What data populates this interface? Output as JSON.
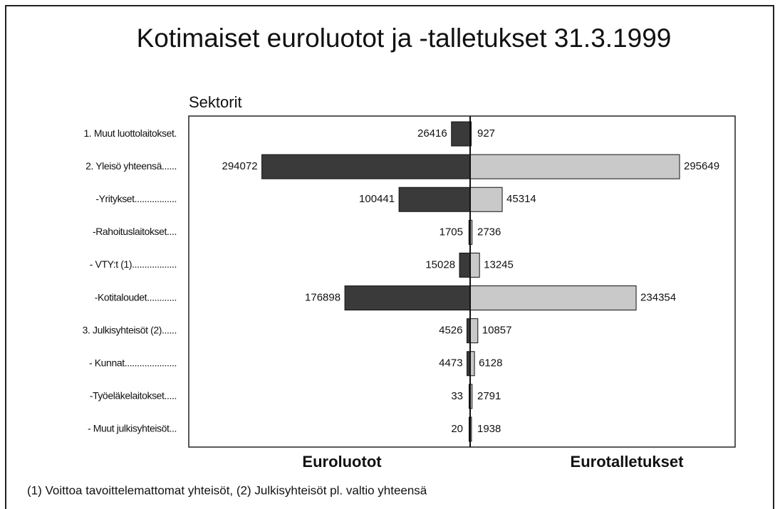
{
  "chart_data": {
    "type": "butterfly-bar",
    "title": "Kotimaiset euroluotot ja -talletukset 31.3.1999",
    "axis_label": "Sektorit",
    "categories": [
      "1. Muut luottolaitokset.",
      "2. Yleisö yhteensä......",
      "-Yritykset.................",
      "-Rahoituslaitokset....",
      "- VTY:t (1)..................",
      "-Kotitaloudet............",
      "3. Julkisyhteisöt (2)......",
      "- Kunnat.....................",
      "-Työeläkelaitokset.....",
      "- Muut julkisyhteisöt..."
    ],
    "series": [
      {
        "name": "Euroluotot",
        "color": "#3a3a3a",
        "values": [
          26416,
          294072,
          100441,
          1705,
          15028,
          176898,
          4526,
          4473,
          33,
          20
        ]
      },
      {
        "name": "Eurotalletukset",
        "color": "#c9c9c9",
        "values": [
          927,
          295649,
          45314,
          2736,
          13245,
          234354,
          10857,
          6128,
          2791,
          1938
        ]
      }
    ],
    "footnote": "(1) Voittoa tavoittelemattomat yhteisöt, (2) Julkisyhteisöt pl. valtio  yhteensä"
  }
}
